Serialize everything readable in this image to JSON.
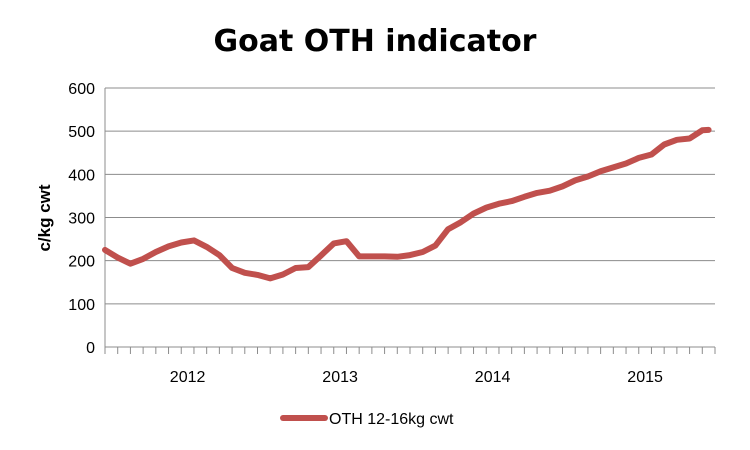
{
  "chart_data": {
    "type": "line",
    "title": "Goat OTH indicator",
    "xlabel": "",
    "ylabel": "c/kg cwt",
    "ylim": [
      0,
      600
    ],
    "yticks": [
      0,
      100,
      200,
      300,
      400,
      500,
      600
    ],
    "xlim": [
      0,
      48
    ],
    "year_labels": [
      {
        "label": "2012",
        "pos": 6.5
      },
      {
        "label": "2013",
        "pos": 18.5
      },
      {
        "label": "2014",
        "pos": 30.5
      },
      {
        "label": "2015",
        "pos": 42.5
      }
    ],
    "grid": true,
    "legend": "bottom",
    "series": [
      {
        "name": "OTH 12-16kg cwt",
        "color": "#c0504d",
        "x": [
          0,
          1,
          2,
          3,
          4,
          5,
          6,
          7,
          8,
          9,
          10,
          11,
          12,
          13,
          14,
          15,
          16,
          17,
          18,
          19,
          20,
          21,
          22,
          23,
          24,
          25,
          26,
          27,
          28,
          29,
          30,
          31,
          32,
          33,
          34,
          35,
          36,
          37,
          38,
          39,
          40,
          41,
          42,
          43,
          44,
          45,
          46,
          47,
          47.5
        ],
        "values": [
          225,
          207,
          193,
          204,
          220,
          233,
          242,
          247,
          232,
          213,
          183,
          172,
          167,
          159,
          168,
          183,
          185,
          212,
          240,
          245,
          210,
          210,
          210,
          209,
          213,
          220,
          235,
          273,
          289,
          309,
          323,
          332,
          338,
          348,
          357,
          362,
          372,
          386,
          395,
          407,
          416,
          425,
          438,
          446,
          469,
          480,
          483,
          502,
          503
        ]
      }
    ]
  }
}
